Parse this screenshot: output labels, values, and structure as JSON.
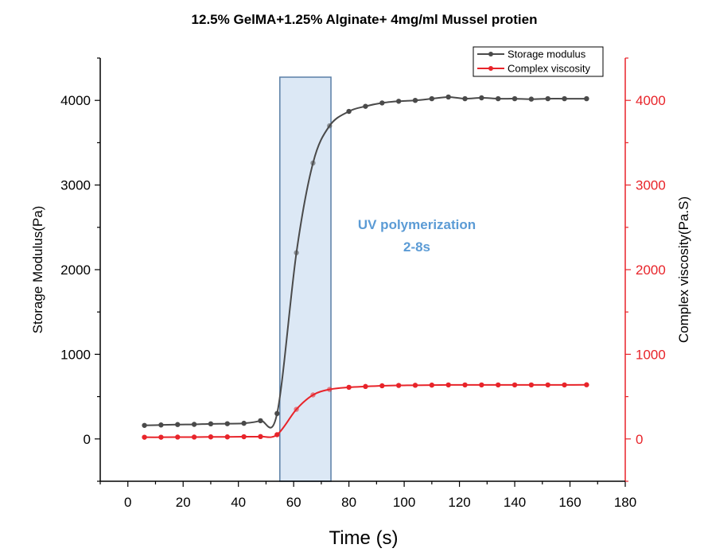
{
  "chart_data": {
    "type": "line",
    "title": "12.5% GelMA+1.25% Alginate+ 4mg/ml Mussel protien",
    "xlabel": "Time (s)",
    "ylabel": "Storage Modulus(Pa)",
    "ylabel_right": "Complex viscosity(Pa.S)",
    "xlim": [
      -10,
      180
    ],
    "ylim": [
      -500,
      4500
    ],
    "ylim_right": [
      -500,
      4500
    ],
    "x_ticks": [
      0,
      20,
      40,
      60,
      80,
      100,
      120,
      140,
      160,
      180
    ],
    "x_tick_labels": [
      "0",
      "20",
      "40",
      "60",
      "80",
      "100",
      "120",
      "140",
      "160",
      "180"
    ],
    "y_ticks": [
      0,
      1000,
      2000,
      3000,
      4000
    ],
    "y_tick_labels": [
      "0",
      "1000",
      "2000",
      "3000",
      "4000"
    ],
    "y_right_ticks": [
      0,
      1000,
      2000,
      3000,
      4000
    ],
    "y_right_tick_labels": [
      "0",
      "1000",
      "2000",
      "3000",
      "4000"
    ],
    "legend_position": "top-right",
    "series": [
      {
        "name": "Storage modulus",
        "axis": "left",
        "color": "#4a4a4a",
        "x": [
          6,
          12,
          18,
          24,
          30,
          36,
          42,
          48,
          54,
          61,
          67,
          73,
          80,
          86,
          92,
          98,
          104,
          110,
          116,
          122,
          128,
          134,
          140,
          146,
          152,
          158,
          166
        ],
        "y": [
          160,
          165,
          170,
          172,
          178,
          180,
          185,
          215,
          300,
          2200,
          3260,
          3700,
          3870,
          3930,
          3970,
          3990,
          4000,
          4020,
          4040,
          4020,
          4030,
          4020,
          4020,
          4015,
          4020,
          4020,
          4020
        ],
        "marker_alpha": [
          1,
          1,
          1,
          1,
          1,
          1,
          1,
          1,
          1,
          0.55,
          0.55,
          0.55,
          1,
          1,
          1,
          1,
          1,
          1,
          1,
          1,
          1,
          1,
          1,
          1,
          1,
          1,
          1
        ]
      },
      {
        "name": "Complex viscosity",
        "axis": "right",
        "color": "#e8242a",
        "x": [
          6,
          12,
          18,
          24,
          30,
          36,
          42,
          48,
          54,
          61,
          67,
          73,
          80,
          86,
          92,
          98,
          104,
          110,
          116,
          122,
          128,
          134,
          140,
          146,
          152,
          158,
          166
        ],
        "y": [
          20,
          20,
          22,
          22,
          24,
          24,
          26,
          28,
          50,
          350,
          520,
          585,
          610,
          620,
          628,
          632,
          634,
          636,
          638,
          638,
          638,
          638,
          638,
          638,
          638,
          638,
          640
        ],
        "marker_alpha": [
          1,
          1,
          1,
          1,
          1,
          1,
          1,
          1,
          1,
          0.55,
          0.55,
          0.55,
          1,
          1,
          1,
          1,
          1,
          1,
          1,
          1,
          1,
          1,
          1,
          1,
          1,
          1,
          1
        ]
      }
    ],
    "highlight_region": {
      "x_range": [
        55,
        73.5
      ],
      "fill": "#dce8f5",
      "stroke": "#5a7fa6"
    },
    "annotation": {
      "line1": "UV polymerization",
      "line2": "2-8s",
      "color": "#5b9bd5"
    },
    "colors": {
      "left_axis": "#000000",
      "right_axis": "#e8242a"
    }
  }
}
